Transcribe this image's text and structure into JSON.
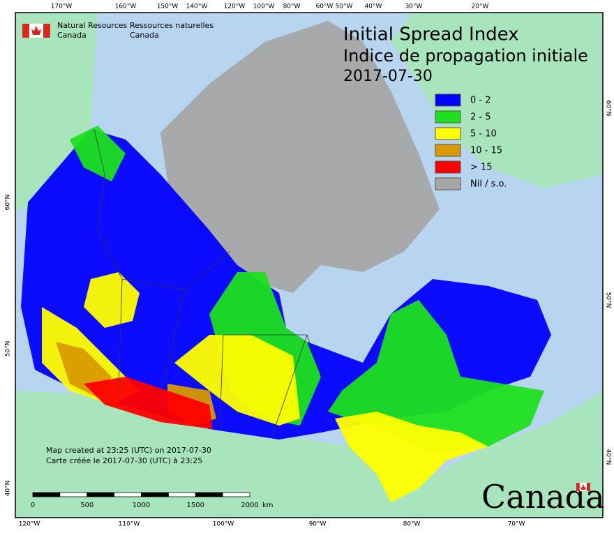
{
  "header": {
    "agency_en": [
      "Natural Resources",
      "Canada"
    ],
    "agency_fr": [
      "Ressources naturelles",
      "Canada"
    ]
  },
  "title": [
    "Initial Spread Index",
    "Indice de propagation initiale",
    "2017-07-30"
  ],
  "legend": [
    {
      "label": "0 - 2",
      "color": "#0000ff"
    },
    {
      "label": "2 - 5",
      "color": "#1ee01e"
    },
    {
      "label": "5 - 10",
      "color": "#ffff00"
    },
    {
      "label": "10 - 15",
      "color": "#d89a00"
    },
    {
      "label": "> 15",
      "color": "#ff0000"
    },
    {
      "label": "Nil / s.o.",
      "color": "#a6a6a6"
    }
  ],
  "graticule": {
    "top": [
      "170°W",
      "160°W",
      "150°W",
      "140°W",
      "120°W",
      "100°W",
      "80°W",
      "60°W",
      "50°W",
      "40°W",
      "30°W",
      "20°W"
    ],
    "bottom": [
      "120°W",
      "110°W",
      "100°W",
      "90°W",
      "80°W",
      "70°W"
    ],
    "left": [
      "60°N",
      "50°N",
      "40°N"
    ],
    "right": [
      "60°N",
      "50°N",
      "40°N"
    ]
  },
  "notes": [
    "Map created at 23:25 (UTC) on 2017-07-30",
    "Carte créée le 2017-07-30 (UTC) à 23:25"
  ],
  "scale_bar": {
    "labels": [
      "0",
      "500",
      "1000",
      "1500",
      "2000"
    ],
    "unit": "km"
  },
  "wordmark": "Canada"
}
